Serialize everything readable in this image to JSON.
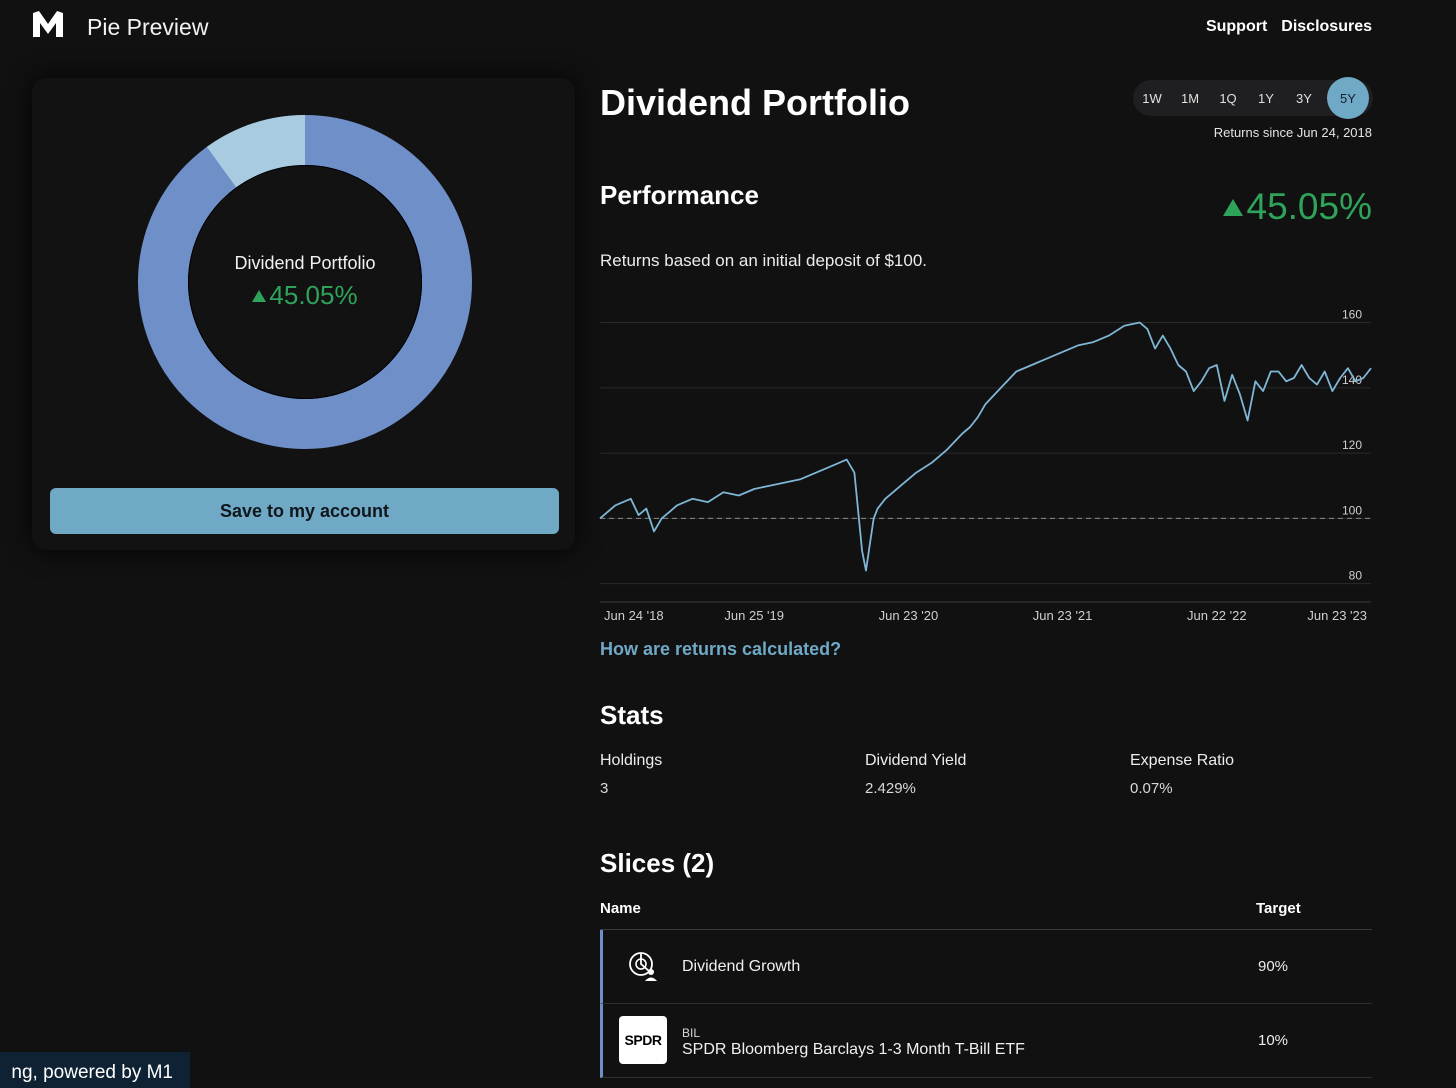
{
  "header": {
    "app_title": "Pie Preview",
    "nav": [
      "Support",
      "Disclosures"
    ]
  },
  "pie": {
    "name": "Dividend Portfolio",
    "return_value": "45.05%",
    "colors": {
      "main": "#6f8fc8",
      "secondary": "#a8cbdf",
      "positive": "#2ea35a"
    },
    "save_label": "Save to my account"
  },
  "portfolio": {
    "title": "Dividend Portfolio",
    "ranges": [
      "1W",
      "1M",
      "1Q",
      "1Y",
      "3Y",
      "5Y"
    ],
    "active_range": "5Y",
    "returns_since": "Returns since Jun 24, 2018"
  },
  "performance": {
    "title": "Performance",
    "value": "45.05%",
    "description": "Returns based on an initial deposit of $100.",
    "link": "How are returns calculated?"
  },
  "chart_data": {
    "type": "line",
    "title": "",
    "xlabel": "",
    "ylabel": "",
    "ylim": [
      75,
      162
    ],
    "y_ticks": [
      80,
      100,
      120,
      140,
      160
    ],
    "y_tick_labels": [
      "80",
      "100",
      "120",
      "140",
      "160"
    ],
    "x_tick_labels": [
      "Jun 24 '18",
      "Jun 25 '19",
      "Jun 23 '20",
      "Jun 23 '21",
      "Jun 22 '22",
      "Jun 23 '23"
    ],
    "x_tick_positions": [
      0.0,
      0.2,
      0.4,
      0.6,
      0.8,
      1.0
    ],
    "baseline": 100,
    "line_color": "#7fb6d6",
    "series": [
      {
        "name": "Dividend Portfolio",
        "x": [
          0.0,
          0.02,
          0.04,
          0.05,
          0.06,
          0.07,
          0.08,
          0.09,
          0.1,
          0.12,
          0.14,
          0.16,
          0.18,
          0.2,
          0.22,
          0.24,
          0.26,
          0.28,
          0.3,
          0.32,
          0.33,
          0.34,
          0.345,
          0.35,
          0.355,
          0.36,
          0.37,
          0.39,
          0.41,
          0.43,
          0.45,
          0.47,
          0.48,
          0.49,
          0.5,
          0.52,
          0.54,
          0.56,
          0.58,
          0.6,
          0.62,
          0.64,
          0.66,
          0.68,
          0.7,
          0.71,
          0.72,
          0.73,
          0.74,
          0.75,
          0.76,
          0.77,
          0.78,
          0.79,
          0.8,
          0.81,
          0.82,
          0.83,
          0.84,
          0.85,
          0.86,
          0.87,
          0.88,
          0.89,
          0.9,
          0.91,
          0.92,
          0.93,
          0.94,
          0.95,
          0.96,
          0.97,
          0.98,
          0.99,
          1.0
        ],
        "values": [
          100,
          104,
          106,
          101,
          103,
          96,
          100,
          102,
          104,
          106,
          105,
          108,
          107,
          109,
          110,
          111,
          112,
          114,
          116,
          118,
          114,
          90,
          84,
          92,
          100,
          103,
          106,
          110,
          114,
          117,
          121,
          126,
          128,
          131,
          135,
          140,
          145,
          147,
          149,
          151,
          153,
          154,
          156,
          159,
          160,
          158,
          152,
          156,
          152,
          147,
          145,
          139,
          142,
          146,
          147,
          136,
          144,
          138,
          130,
          142,
          139,
          145,
          145,
          142,
          143,
          147,
          143,
          141,
          145,
          139,
          143,
          146,
          142,
          143,
          146
        ]
      }
    ]
  },
  "stats": {
    "title": "Stats",
    "items": [
      {
        "label": "Holdings",
        "value": "3"
      },
      {
        "label": "Dividend Yield",
        "value": "2.429%"
      },
      {
        "label": "Expense Ratio",
        "value": "0.07%"
      }
    ]
  },
  "slices": {
    "title": "Slices (2)",
    "col_name": "Name",
    "col_target": "Target",
    "rows": [
      {
        "name": "Dividend Growth",
        "target": "90%",
        "icon": "pie-person-icon"
      },
      {
        "ticker": "BIL",
        "name": "SPDR Bloomberg Barclays 1-3 Month T-Bill ETF",
        "target": "10%",
        "icon": "spdr-logo",
        "logo_text": "SPDR"
      }
    ]
  },
  "footer": {
    "banner": "ng, powered by M1"
  }
}
